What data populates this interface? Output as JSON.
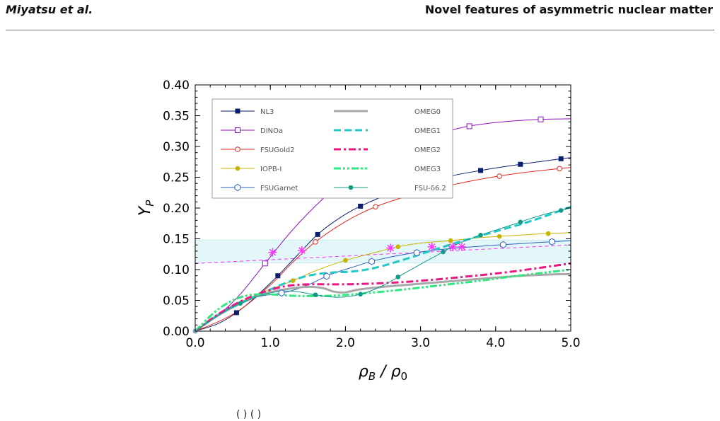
{
  "header": {
    "authors": "Miyatsu et al.",
    "title": "Novel features of asymmetric nuclear matter"
  },
  "footer_fragment": "(     ) ( )",
  "chart_data": {
    "type": "line",
    "xlabel": "ρ_B / ρ_0",
    "ylabel": "Y_P",
    "xlim": [
      0,
      5
    ],
    "ylim": [
      0,
      0.4
    ],
    "xticks": [
      "0.0",
      "1.0",
      "2.0",
      "3.0",
      "4.0",
      "5.0"
    ],
    "yticks": [
      "0.00",
      "0.05",
      "0.10",
      "0.15",
      "0.20",
      "0.25",
      "0.30",
      "0.35",
      "0.40"
    ],
    "band": [
      0.111,
      0.148
    ],
    "legend_position": "top-left",
    "series": [
      {
        "name": "NL3",
        "color": "#0b1f6e",
        "style": "solid",
        "width": 1,
        "marker": "square-filled",
        "x": [
          0,
          0.3,
          0.55,
          0.8,
          1.1,
          1.35,
          1.63,
          1.9,
          2.2,
          2.7,
          3.25,
          3.8,
          4.33,
          4.87,
          5.0
        ],
        "y": [
          0,
          0.012,
          0.03,
          0.055,
          0.09,
          0.122,
          0.157,
          0.182,
          0.203,
          0.228,
          0.248,
          0.261,
          0.271,
          0.28,
          0.282
        ],
        "markers_x": [
          0.55,
          1.1,
          1.63,
          2.2,
          3.25,
          3.8,
          4.33,
          4.87
        ]
      },
      {
        "name": "DINOa",
        "color": "#9010c0",
        "style": "solid",
        "width": 1,
        "marker": "square-open",
        "x": [
          0,
          0.3,
          0.6,
          0.93,
          1.3,
          1.7,
          2.1,
          2.6,
          3.1,
          3.6,
          4.1,
          4.6,
          5.0
        ],
        "y": [
          0,
          0.025,
          0.06,
          0.11,
          0.165,
          0.215,
          0.255,
          0.29,
          0.315,
          0.332,
          0.34,
          0.344,
          0.345
        ],
        "markers_x": [
          0.93,
          3.65,
          4.6
        ]
      },
      {
        "name": "FSUGold2",
        "color": "#e02820",
        "style": "solid",
        "width": 1,
        "marker": "circle-open",
        "x": [
          0,
          0.3,
          0.6,
          1.0,
          1.3,
          1.6,
          2.0,
          2.4,
          2.9,
          3.4,
          3.9,
          4.4,
          5.0
        ],
        "y": [
          0,
          0.015,
          0.035,
          0.075,
          0.112,
          0.145,
          0.178,
          0.202,
          0.222,
          0.237,
          0.249,
          0.258,
          0.266
        ],
        "markers_x": [
          1.6,
          2.4,
          3.35,
          4.05,
          4.85
        ]
      },
      {
        "name": "IOPB-I",
        "color": "#c8b400",
        "style": "solid",
        "width": 1,
        "marker": "circle-filled",
        "x": [
          0,
          0.4,
          0.8,
          1.3,
          1.6,
          2.0,
          2.4,
          2.7,
          3.0,
          3.4,
          3.8,
          4.2,
          4.6,
          5.0
        ],
        "y": [
          0,
          0.035,
          0.058,
          0.082,
          0.098,
          0.115,
          0.128,
          0.137,
          0.143,
          0.147,
          0.152,
          0.155,
          0.158,
          0.16
        ],
        "markers_x": [
          1.3,
          2.0,
          2.7,
          3.4,
          4.05,
          4.7
        ]
      },
      {
        "name": "FSUGarnet",
        "color": "#3060c0",
        "style": "solid",
        "width": 1,
        "marker": "hexagon-open",
        "x": [
          0,
          0.4,
          0.8,
          1.2,
          1.5,
          1.8,
          2.1,
          2.4,
          2.8,
          3.3,
          3.8,
          4.3,
          5.0
        ],
        "y": [
          0,
          0.035,
          0.055,
          0.063,
          0.075,
          0.092,
          0.104,
          0.115,
          0.125,
          0.133,
          0.138,
          0.142,
          0.147
        ],
        "markers_x": [
          1.15,
          1.75,
          2.35,
          2.95,
          4.1,
          4.75
        ]
      },
      {
        "name": "OMEG0",
        "color": "#a8a8a8",
        "style": "solid",
        "width": 3,
        "marker": "none",
        "x": [
          0,
          0.3,
          0.6,
          0.9,
          1.2,
          1.5,
          1.7,
          1.85,
          2.0,
          2.2,
          2.6,
          3.0,
          3.5,
          4.0,
          4.5,
          5.0
        ],
        "y": [
          0,
          0.025,
          0.045,
          0.06,
          0.068,
          0.072,
          0.07,
          0.064,
          0.063,
          0.068,
          0.073,
          0.077,
          0.082,
          0.087,
          0.091,
          0.093
        ],
        "markers_x": []
      },
      {
        "name": "OMEG1",
        "color": "#20c8c8",
        "style": "dashed",
        "width": 3,
        "marker": "none",
        "x": [
          0,
          0.3,
          0.6,
          0.9,
          1.2,
          1.5,
          1.8,
          2.1,
          2.4,
          2.8,
          3.2,
          3.6,
          4.0,
          4.5,
          5.0
        ],
        "y": [
          0,
          0.026,
          0.045,
          0.062,
          0.078,
          0.09,
          0.095,
          0.097,
          0.103,
          0.117,
          0.133,
          0.148,
          0.162,
          0.18,
          0.202
        ],
        "markers_x": []
      },
      {
        "name": "OMEG2",
        "color": "#e81880",
        "style": "dashdot",
        "width": 3,
        "marker": "none",
        "x": [
          0,
          0.3,
          0.6,
          0.9,
          1.2,
          1.5,
          1.9,
          2.3,
          2.8,
          3.3,
          3.8,
          4.3,
          5.0
        ],
        "y": [
          0,
          0.027,
          0.048,
          0.063,
          0.073,
          0.076,
          0.076,
          0.077,
          0.08,
          0.085,
          0.091,
          0.098,
          0.11
        ],
        "markers_x": []
      },
      {
        "name": "OMEG3",
        "color": "#30e880",
        "style": "dashdotdot",
        "width": 3,
        "marker": "none",
        "x": [
          0,
          0.3,
          0.6,
          0.9,
          1.2,
          1.5,
          1.9,
          2.3,
          2.8,
          3.3,
          3.8,
          4.3,
          5.0
        ],
        "y": [
          0,
          0.035,
          0.055,
          0.06,
          0.058,
          0.057,
          0.058,
          0.062,
          0.068,
          0.075,
          0.082,
          0.09,
          0.1
        ],
        "markers_x": []
      },
      {
        "name": "FSU-δ6.2",
        "color": "#109a88",
        "style": "solid",
        "width": 1,
        "marker": "circle-filled",
        "x": [
          0,
          0.3,
          0.6,
          1.0,
          1.3,
          1.6,
          1.9,
          2.2,
          2.5,
          2.8,
          3.2,
          3.5,
          3.8,
          4.2,
          4.6,
          5.0
        ],
        "y": [
          0,
          0.025,
          0.045,
          0.062,
          0.065,
          0.059,
          0.055,
          0.06,
          0.074,
          0.095,
          0.122,
          0.142,
          0.156,
          0.172,
          0.188,
          0.2
        ],
        "markers_x": [
          0.6,
          1.6,
          2.2,
          2.7,
          3.3,
          3.8,
          4.33,
          4.87
        ]
      }
    ],
    "trend_line": {
      "color": "#ff30ff",
      "style": "dashed",
      "x": [
        0,
        5
      ],
      "y": [
        0.11,
        0.14
      ]
    },
    "star_points": {
      "color": "#ff30ff",
      "x": [
        1.03,
        1.42,
        2.6,
        3.15,
        3.43,
        3.55
      ],
      "y": [
        0.128,
        0.131,
        0.135,
        0.137,
        0.137,
        0.137
      ]
    }
  }
}
